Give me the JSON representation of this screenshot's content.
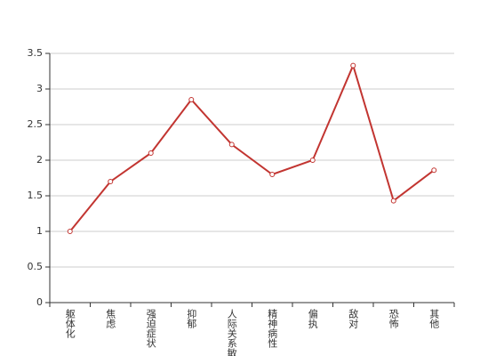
{
  "chart_data": {
    "type": "line",
    "categories": [
      "躯体化",
      "焦虑",
      "强迫症状",
      "抑郁",
      "人际关系敏感",
      "精神病性",
      "偏执",
      "敌对",
      "恐怖",
      "其他"
    ],
    "series": [
      {
        "color": "#c23531",
        "values": [
          1.0,
          1.7,
          2.1,
          2.85,
          2.22,
          1.8,
          2.0,
          3.33,
          1.43,
          1.86
        ]
      }
    ],
    "ylim": [
      0,
      3.5
    ],
    "yticks": [
      0,
      0.5,
      1,
      1.5,
      2,
      2.5,
      3,
      3.5
    ],
    "grid": true
  }
}
